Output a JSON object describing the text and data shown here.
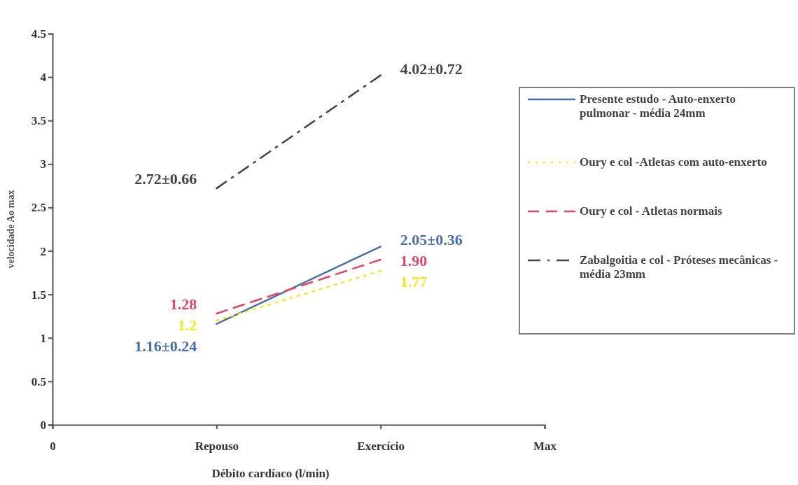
{
  "chart_data": {
    "type": "line",
    "xlabel": "Débito cardíaco (l/min)",
    "ylabel": "velocidade Ao max",
    "categories": [
      "0",
      "Repouso",
      "Exercício",
      "Max"
    ],
    "ylim": [
      0,
      4.5
    ],
    "yticks": [
      0,
      0.5,
      1,
      1.5,
      2,
      2.5,
      3,
      3.5,
      4,
      4.5
    ],
    "grid": false,
    "legend": "right",
    "marker": "none",
    "series": [
      {
        "name": "Presente estudo - Auto-enxerto pulmonar - média 24mm",
        "color": "#4a6fa5",
        "line_style": "solid",
        "values": [
          null,
          1.16,
          2.05,
          null
        ],
        "value_labels": [
          null,
          "1.16±0.24",
          "2.05±0.36",
          null
        ]
      },
      {
        "name": "Oury e col -Atletas com auto-enxerto",
        "color": "#f2ea1c",
        "line_style": "dotted",
        "values": [
          null,
          1.2,
          1.77,
          null
        ],
        "value_labels": [
          null,
          "1.2",
          "1.77",
          null
        ]
      },
      {
        "name": "Oury e col - Atletas normais",
        "color": "#e0456b",
        "line_style": "dashed",
        "values": [
          null,
          1.28,
          1.9,
          null
        ],
        "value_labels": [
          null,
          "1.28",
          "1.90",
          null
        ]
      },
      {
        "name": "Zabalgoitia e col - Próteses mecânicas - média 23mm",
        "color": "#444444",
        "line_style": "dashdot",
        "values": [
          null,
          2.72,
          4.02,
          null
        ],
        "value_labels": [
          null,
          "2.72±0.66",
          "4.02±0.72",
          null
        ]
      }
    ]
  }
}
